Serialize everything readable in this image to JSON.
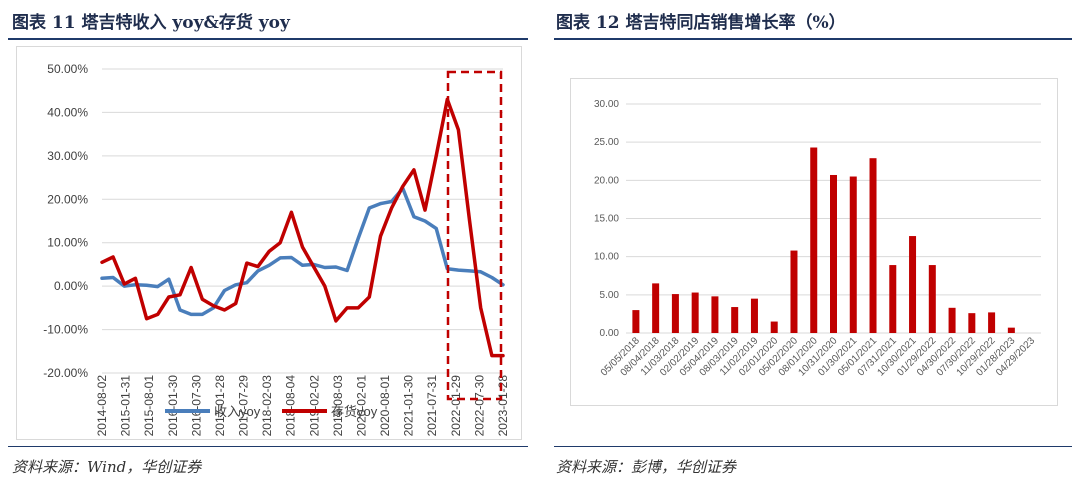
{
  "left": {
    "title": "图表 11   塔吉特收入 yoy&存货 yoy",
    "source": "资料来源：Wind，华创证券"
  },
  "right": {
    "title": "图表 12   塔吉特同店销售增长率（%）",
    "source": "资料来源：彭博，华创证券"
  },
  "colors": {
    "revenue": "#4a7ebb",
    "inventory": "#c00000",
    "bar": "#c00000",
    "rule": "#1f3a6a",
    "highlight": "#c00000"
  },
  "chart_data": [
    {
      "type": "line",
      "title": "",
      "xlabel": "",
      "ylabel": "",
      "ylim": [
        -0.2,
        0.5
      ],
      "yticks": [
        "50.00%",
        "40.00%",
        "30.00%",
        "20.00%",
        "10.00%",
        "0.00%",
        "-10.00%",
        "-20.00%"
      ],
      "xticks": [
        "2014-08-02",
        "2015-01-31",
        "2015-08-01",
        "2016-01-30",
        "2016-07-30",
        "2017-01-28",
        "2017-07-29",
        "2018-02-03",
        "2018-08-04",
        "2019-02-02",
        "2019-08-03",
        "2020-02-01",
        "2020-08-01",
        "2021-01-30",
        "2021-07-31",
        "2022-01-29",
        "2022-07-30",
        "2023-01-28"
      ],
      "grid": true,
      "legend": "bottom",
      "highlight_box": "last 4 quarters, dashed red",
      "series": [
        {
          "name": "收入yoy",
          "values": [
            0.018,
            0.02,
            0.0,
            0.003,
            0.002,
            -0.001,
            0.016,
            -0.055,
            -0.065,
            -0.065,
            -0.05,
            -0.01,
            0.003,
            0.008,
            0.035,
            0.048,
            0.065,
            0.066,
            0.048,
            0.05,
            0.043,
            0.044,
            0.036,
            0.11,
            0.18,
            0.19,
            0.195,
            0.225,
            0.16,
            0.15,
            0.133,
            0.04,
            0.037,
            0.035,
            0.033,
            0.02,
            0.003
          ]
        },
        {
          "name": "存货yoy",
          "values": [
            0.055,
            0.067,
            0.005,
            0.018,
            -0.075,
            -0.065,
            -0.025,
            -0.02,
            0.043,
            -0.03,
            -0.045,
            -0.055,
            -0.04,
            0.053,
            0.045,
            0.08,
            0.1,
            0.17,
            0.09,
            0.045,
            0.0,
            -0.08,
            -0.05,
            -0.05,
            -0.025,
            0.115,
            0.18,
            0.23,
            0.268,
            0.175,
            0.3,
            0.43,
            0.36,
            0.15,
            -0.05,
            -0.16,
            -0.16
          ]
        }
      ]
    },
    {
      "type": "bar",
      "title": "",
      "xlabel": "",
      "ylabel": "",
      "ylim": [
        0,
        30
      ],
      "yticks": [
        "30.00",
        "25.00",
        "20.00",
        "15.00",
        "10.00",
        "5.00",
        "0.00"
      ],
      "grid": true,
      "categories": [
        "05/05/2018",
        "08/04/2018",
        "11/03/2018",
        "02/02/2019",
        "05/04/2019",
        "08/03/2019",
        "11/02/2019",
        "02/01/2020",
        "05/02/2020",
        "08/01/2020",
        "10/31/2020",
        "01/30/2021",
        "05/01/2021",
        "07/31/2021",
        "10/30/2021",
        "01/29/2022",
        "04/30/2022",
        "07/30/2022",
        "10/29/2022",
        "01/28/2023",
        "04/29/2023"
      ],
      "values": [
        3.0,
        6.5,
        5.1,
        5.3,
        4.8,
        3.4,
        4.5,
        1.5,
        10.8,
        24.3,
        20.7,
        20.5,
        22.9,
        8.9,
        12.7,
        8.9,
        3.3,
        2.6,
        2.7,
        0.7,
        0
      ]
    }
  ]
}
